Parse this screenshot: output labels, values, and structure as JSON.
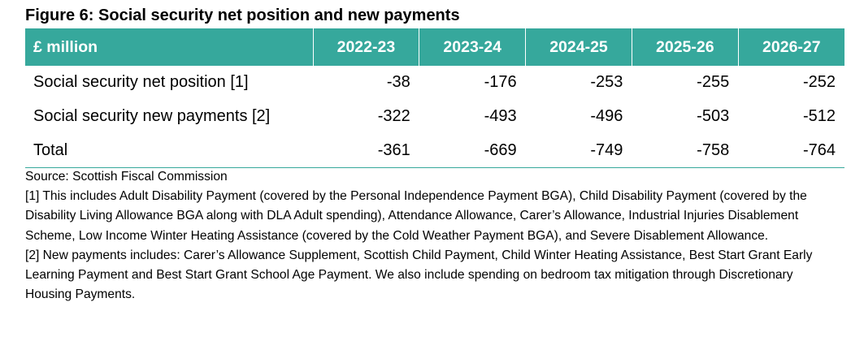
{
  "title": "Figure 6: Social security net position and new payments",
  "table": {
    "unit_header": "£ million",
    "columns": [
      "2022-23",
      "2023-24",
      "2024-25",
      "2025-26",
      "2026-27"
    ],
    "rows": [
      {
        "label": "Social security net position [1]",
        "values": [
          "-38",
          "-176",
          "-253",
          "-255",
          "-252"
        ]
      },
      {
        "label": "Social security new payments [2]",
        "values": [
          "-322",
          "-493",
          "-496",
          "-503",
          "-512"
        ]
      },
      {
        "label": "Total",
        "values": [
          "-361",
          "-669",
          "-749",
          "-758",
          "-764"
        ]
      }
    ]
  },
  "notes": {
    "source": "Source: Scottish Fiscal Commission",
    "note1": "[1] This includes Adult Disability Payment (covered by the Personal Independence Payment BGA), Child Disability Payment (covered by the Disability Living Allowance BGA along with DLA Adult spending), Attendance Allowance, Carer’s Allowance, Industrial Injuries Disablement Scheme, Low Income Winter Heating Assistance (covered by the Cold Weather Payment BGA), and Severe Disablement Allowance.",
    "note2": "[2] New payments includes: Carer’s Allowance Supplement, Scottish Child Payment, Child Winter Heating Assistance, Best Start Grant Early Learning Payment and Best Start Grant School Age Payment. We also include spending on bedroom tax mitigation through Discretionary Housing Payments."
  },
  "colors": {
    "header_bg": "#36a89c",
    "header_text": "#ffffff"
  }
}
